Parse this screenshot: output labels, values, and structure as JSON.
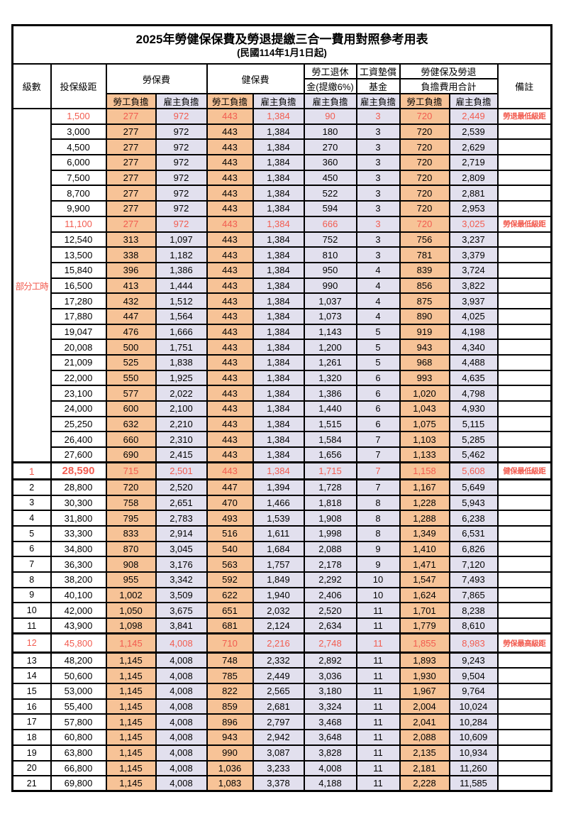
{
  "title": "2025年勞健保保費及勞退提繳三合一費用對照參考用表",
  "subtitle": "(民國114年1月1日起)",
  "columns": {
    "level": "級數",
    "bracket": "投保級距",
    "labor_ins": "勞保費",
    "health_ins": "健保費",
    "pension_line1": "勞工退休",
    "pension_line2": "金(提繳6%)",
    "wage_fund_line1": "工資墊償",
    "wage_fund_line2": "基金",
    "total_line1": "勞健保及勞退",
    "total_line2": "負擔費用合計",
    "remark": "備註"
  },
  "sub_headers": {
    "employee": "勞工負擔",
    "employer": "雇主負擔"
  },
  "part_time": {
    "label": "部分工時",
    "span": 23
  },
  "colors": {
    "employee_bg": "#F7C397",
    "employer_bg": "#E2E0EE",
    "highlight_red": "#F25C50",
    "border": "#000000"
  },
  "rows": [
    {
      "level": "",
      "bracket": "1,500",
      "values": [
        "277",
        "972",
        "443",
        "1,384",
        "90",
        "3",
        "720",
        "2,449"
      ],
      "remark": "勞退最低級距",
      "red": true
    },
    {
      "level": "",
      "bracket": "3,000",
      "values": [
        "277",
        "972",
        "443",
        "1,384",
        "180",
        "3",
        "720",
        "2,539"
      ],
      "remark": ""
    },
    {
      "level": "",
      "bracket": "4,500",
      "values": [
        "277",
        "972",
        "443",
        "1,384",
        "270",
        "3",
        "720",
        "2,629"
      ],
      "remark": ""
    },
    {
      "level": "",
      "bracket": "6,000",
      "values": [
        "277",
        "972",
        "443",
        "1,384",
        "360",
        "3",
        "720",
        "2,719"
      ],
      "remark": ""
    },
    {
      "level": "",
      "bracket": "7,500",
      "values": [
        "277",
        "972",
        "443",
        "1,384",
        "450",
        "3",
        "720",
        "2,809"
      ],
      "remark": ""
    },
    {
      "level": "",
      "bracket": "8,700",
      "values": [
        "277",
        "972",
        "443",
        "1,384",
        "522",
        "3",
        "720",
        "2,881"
      ],
      "remark": ""
    },
    {
      "level": "",
      "bracket": "9,900",
      "values": [
        "277",
        "972",
        "443",
        "1,384",
        "594",
        "3",
        "720",
        "2,953"
      ],
      "remark": ""
    },
    {
      "level": "",
      "bracket": "11,100",
      "values": [
        "277",
        "972",
        "443",
        "1,384",
        "666",
        "3",
        "720",
        "3,025"
      ],
      "remark": "勞保最低級距",
      "red": true
    },
    {
      "level": "",
      "bracket": "12,540",
      "values": [
        "313",
        "1,097",
        "443",
        "1,384",
        "752",
        "3",
        "756",
        "3,237"
      ],
      "remark": ""
    },
    {
      "level": "",
      "bracket": "13,500",
      "values": [
        "338",
        "1,182",
        "443",
        "1,384",
        "810",
        "3",
        "781",
        "3,379"
      ],
      "remark": ""
    },
    {
      "level": "",
      "bracket": "15,840",
      "values": [
        "396",
        "1,386",
        "443",
        "1,384",
        "950",
        "4",
        "839",
        "3,724"
      ],
      "remark": ""
    },
    {
      "level": "",
      "bracket": "16,500",
      "values": [
        "413",
        "1,444",
        "443",
        "1,384",
        "990",
        "4",
        "856",
        "3,822"
      ],
      "remark": ""
    },
    {
      "level": "",
      "bracket": "17,280",
      "values": [
        "432",
        "1,512",
        "443",
        "1,384",
        "1,037",
        "4",
        "875",
        "3,937"
      ],
      "remark": ""
    },
    {
      "level": "",
      "bracket": "17,880",
      "values": [
        "447",
        "1,564",
        "443",
        "1,384",
        "1,073",
        "4",
        "890",
        "4,025"
      ],
      "remark": ""
    },
    {
      "level": "",
      "bracket": "19,047",
      "values": [
        "476",
        "1,666",
        "443",
        "1,384",
        "1,143",
        "5",
        "919",
        "4,198"
      ],
      "remark": ""
    },
    {
      "level": "",
      "bracket": "20,008",
      "values": [
        "500",
        "1,751",
        "443",
        "1,384",
        "1,200",
        "5",
        "943",
        "4,340"
      ],
      "remark": ""
    },
    {
      "level": "",
      "bracket": "21,009",
      "values": [
        "525",
        "1,838",
        "443",
        "1,384",
        "1,261",
        "5",
        "968",
        "4,488"
      ],
      "remark": ""
    },
    {
      "level": "",
      "bracket": "22,000",
      "values": [
        "550",
        "1,925",
        "443",
        "1,384",
        "1,320",
        "6",
        "993",
        "4,635"
      ],
      "remark": ""
    },
    {
      "level": "",
      "bracket": "23,100",
      "values": [
        "577",
        "2,022",
        "443",
        "1,384",
        "1,386",
        "6",
        "1,020",
        "4,798"
      ],
      "remark": ""
    },
    {
      "level": "",
      "bracket": "24,000",
      "values": [
        "600",
        "2,100",
        "443",
        "1,384",
        "1,440",
        "6",
        "1,043",
        "4,930"
      ],
      "remark": ""
    },
    {
      "level": "",
      "bracket": "25,250",
      "values": [
        "632",
        "2,210",
        "443",
        "1,384",
        "1,515",
        "6",
        "1,075",
        "5,115"
      ],
      "remark": ""
    },
    {
      "level": "",
      "bracket": "26,400",
      "values": [
        "660",
        "2,310",
        "443",
        "1,384",
        "1,584",
        "7",
        "1,103",
        "5,285"
      ],
      "remark": ""
    },
    {
      "level": "",
      "bracket": "27,600",
      "values": [
        "690",
        "2,415",
        "443",
        "1,384",
        "1,656",
        "7",
        "1,133",
        "5,462"
      ],
      "remark": ""
    },
    {
      "level": "1",
      "bracket": "28,590",
      "values": [
        "715",
        "2,501",
        "443",
        "1,384",
        "1,715",
        "7",
        "1,158",
        "5,608"
      ],
      "remark": "健保最低級距",
      "red": true,
      "big": true
    },
    {
      "level": "2",
      "bracket": "28,800",
      "values": [
        "720",
        "2,520",
        "447",
        "1,394",
        "1,728",
        "7",
        "1,167",
        "5,649"
      ],
      "remark": ""
    },
    {
      "level": "3",
      "bracket": "30,300",
      "values": [
        "758",
        "2,651",
        "470",
        "1,466",
        "1,818",
        "8",
        "1,228",
        "5,943"
      ],
      "remark": ""
    },
    {
      "level": "4",
      "bracket": "31,800",
      "values": [
        "795",
        "2,783",
        "493",
        "1,539",
        "1,908",
        "8",
        "1,288",
        "6,238"
      ],
      "remark": ""
    },
    {
      "level": "5",
      "bracket": "33,300",
      "values": [
        "833",
        "2,914",
        "516",
        "1,611",
        "1,998",
        "8",
        "1,349",
        "6,531"
      ],
      "remark": ""
    },
    {
      "level": "6",
      "bracket": "34,800",
      "values": [
        "870",
        "3,045",
        "540",
        "1,684",
        "2,088",
        "9",
        "1,410",
        "6,826"
      ],
      "remark": ""
    },
    {
      "level": "7",
      "bracket": "36,300",
      "values": [
        "908",
        "3,176",
        "563",
        "1,757",
        "2,178",
        "9",
        "1,471",
        "7,120"
      ],
      "remark": ""
    },
    {
      "level": "8",
      "bracket": "38,200",
      "values": [
        "955",
        "3,342",
        "592",
        "1,849",
        "2,292",
        "10",
        "1,547",
        "7,493"
      ],
      "remark": ""
    },
    {
      "level": "9",
      "bracket": "40,100",
      "values": [
        "1,002",
        "3,509",
        "622",
        "1,940",
        "2,406",
        "10",
        "1,624",
        "7,865"
      ],
      "remark": ""
    },
    {
      "level": "10",
      "bracket": "42,000",
      "values": [
        "1,050",
        "3,675",
        "651",
        "2,032",
        "2,520",
        "11",
        "1,701",
        "8,238"
      ],
      "remark": ""
    },
    {
      "level": "11",
      "bracket": "43,900",
      "values": [
        "1,098",
        "3,841",
        "681",
        "2,124",
        "2,634",
        "11",
        "1,779",
        "8,610"
      ],
      "remark": ""
    },
    {
      "level": "12",
      "bracket": "45,800",
      "values": [
        "1,145",
        "4,008",
        "710",
        "2,216",
        "2,748",
        "11",
        "1,855",
        "8,983"
      ],
      "remark": "勞保最高級距",
      "red": true,
      "tall": true
    },
    {
      "level": "13",
      "bracket": "48,200",
      "values": [
        "1,145",
        "4,008",
        "748",
        "2,332",
        "2,892",
        "11",
        "1,893",
        "9,243"
      ],
      "remark": ""
    },
    {
      "level": "14",
      "bracket": "50,600",
      "values": [
        "1,145",
        "4,008",
        "785",
        "2,449",
        "3,036",
        "11",
        "1,930",
        "9,504"
      ],
      "remark": ""
    },
    {
      "level": "15",
      "bracket": "53,000",
      "values": [
        "1,145",
        "4,008",
        "822",
        "2,565",
        "3,180",
        "11",
        "1,967",
        "9,764"
      ],
      "remark": ""
    },
    {
      "level": "16",
      "bracket": "55,400",
      "values": [
        "1,145",
        "4,008",
        "859",
        "2,681",
        "3,324",
        "11",
        "2,004",
        "10,024"
      ],
      "remark": ""
    },
    {
      "level": "17",
      "bracket": "57,800",
      "values": [
        "1,145",
        "4,008",
        "896",
        "2,797",
        "3,468",
        "11",
        "2,041",
        "10,284"
      ],
      "remark": ""
    },
    {
      "level": "18",
      "bracket": "60,800",
      "values": [
        "1,145",
        "4,008",
        "943",
        "2,942",
        "3,648",
        "11",
        "2,088",
        "10,609"
      ],
      "remark": ""
    },
    {
      "level": "19",
      "bracket": "63,800",
      "values": [
        "1,145",
        "4,008",
        "990",
        "3,087",
        "3,828",
        "11",
        "2,135",
        "10,934"
      ],
      "remark": ""
    },
    {
      "level": "20",
      "bracket": "66,800",
      "values": [
        "1,145",
        "4,008",
        "1,036",
        "3,233",
        "4,008",
        "11",
        "2,181",
        "11,260"
      ],
      "remark": ""
    },
    {
      "level": "21",
      "bracket": "69,800",
      "values": [
        "1,145",
        "4,008",
        "1,083",
        "3,378",
        "4,188",
        "11",
        "2,228",
        "11,585"
      ],
      "remark": ""
    }
  ]
}
